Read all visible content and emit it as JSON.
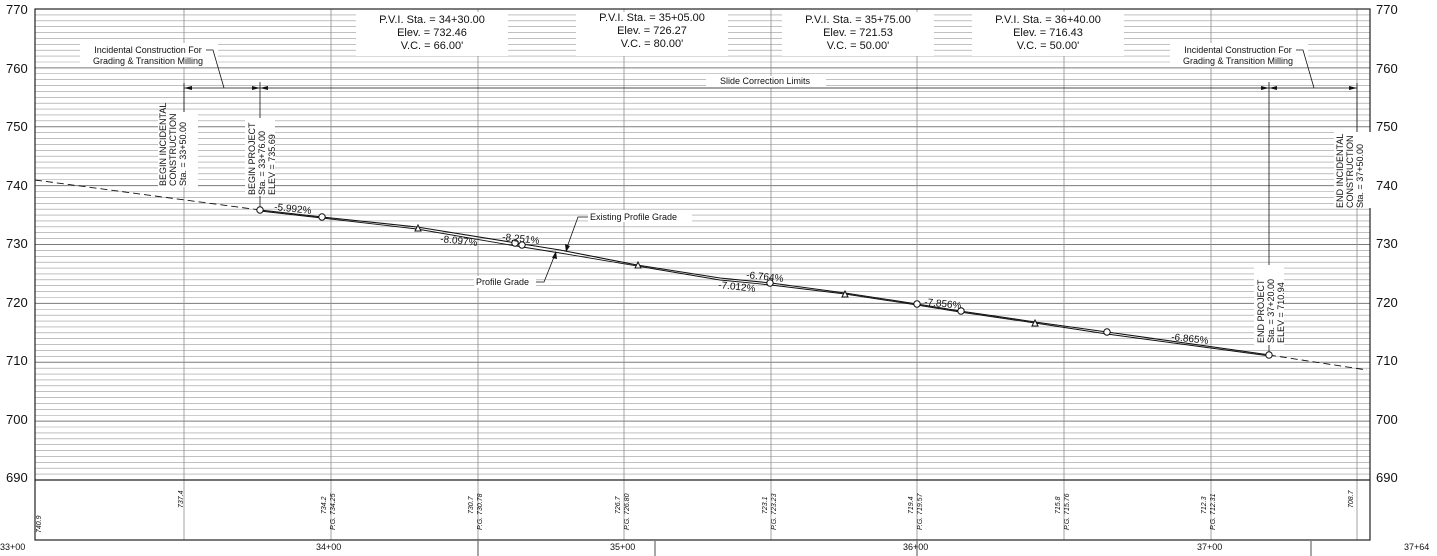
{
  "left_elevation_labels": [
    "770",
    "760",
    "750",
    "740",
    "730",
    "720",
    "710",
    "700",
    "690"
  ],
  "right_elevation_labels": [
    "770",
    "760",
    "750",
    "740",
    "730",
    "720",
    "710",
    "700",
    "690"
  ],
  "station_labels": [
    "33+00",
    "34+00",
    "35+00",
    "36+00",
    "37+00",
    "37+64"
  ],
  "pvi_blocks": [
    {
      "sta": "P.V.I. Sta. = 34+30.00",
      "elev": "Elev. = 732.46",
      "vc": "V.C. = 66.00'"
    },
    {
      "sta": "P.V.I. Sta. = 35+05.00",
      "elev": "Elev. = 726.27",
      "vc": "V.C. = 80.00'"
    },
    {
      "sta": "P.V.I. Sta. = 35+75.00",
      "elev": "Elev. = 721.53",
      "vc": "V.C. = 50.00'"
    },
    {
      "sta": "P.V.I. Sta. = 36+40.00",
      "elev": "Elev. = 716.43",
      "vc": "V.C. = 50.00'"
    }
  ],
  "incidental_left": {
    "line1": "Incidental Construction For",
    "line2": "Grading & Transition Milling"
  },
  "incidental_right": {
    "line1": "Incidental Construction For",
    "line2": "Grading & Transition Milling"
  },
  "slide_limits": "Slide Correction Limits",
  "begin_incidental": {
    "line1": "BEGIN INCIDENTAL",
    "line2": "CONSTRUCTION",
    "line3": "Sta. = 33+50.00"
  },
  "begin_project": {
    "line1": "BEGIN PROJECT",
    "line2": "Sta. = 33+76.00",
    "line3": "ELEV = 735.69"
  },
  "end_project": {
    "line1": "END PROJECT",
    "line2": "Sta. = 37+20.00",
    "line3": "ELEV = 710.94"
  },
  "end_incidental": {
    "line1": "END INCIDENTAL",
    "line2": "CONSTRUCTION",
    "line3": "Sta. = 37+50.00"
  },
  "existing_profile_label": "Existing Profile Grade",
  "profile_grade_label": "Profile Grade",
  "grades": [
    "-5.992%",
    "-8.097%",
    "-8.251%",
    "-6.764%",
    "-7.012%",
    "-7.856%",
    "-6.865%"
  ],
  "bottom_elevations": [
    {
      "a": "740.9",
      "b": ""
    },
    {
      "a": "737.4",
      "b": ""
    },
    {
      "a": "734.2",
      "b": "P.G. 734.25"
    },
    {
      "a": "730.7",
      "b": "P.G. 730.78"
    },
    {
      "a": "726.7",
      "b": "P.G. 726.80"
    },
    {
      "a": "723.1",
      "b": "P.G. 723.23"
    },
    {
      "a": "719.4",
      "b": "P.G. 719.57"
    },
    {
      "a": "715.8",
      "b": "P.G. 715.76"
    },
    {
      "a": "712.3",
      "b": "P.G. 712.31"
    },
    {
      "a": "708.7",
      "b": ""
    }
  ]
}
